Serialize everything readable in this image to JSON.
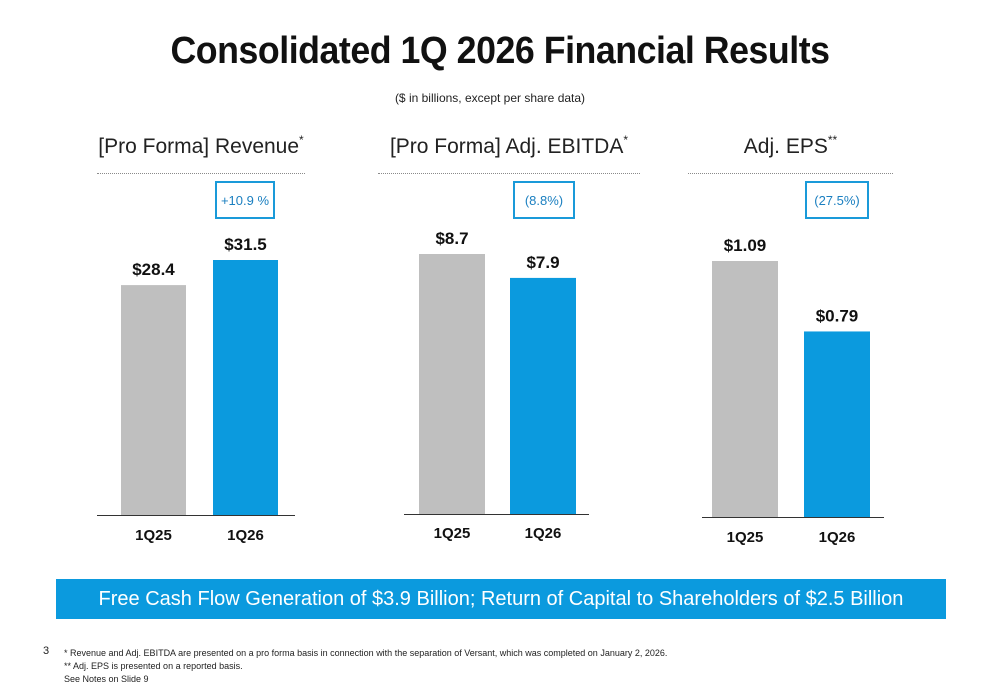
{
  "title": "Consolidated 1Q 2026 Financial Results",
  "subtitle": "($ in billions, except per share data)",
  "colors": {
    "prior": "#bfbfbf",
    "current": "#0b9ade",
    "accent": "#1a9ad9",
    "banner": "#0b9ade"
  },
  "chart_data": [
    {
      "type": "bar",
      "title": "[Pro Forma] Revenue",
      "title_mark": "*",
      "categories": [
        "1Q25",
        "1Q26"
      ],
      "values": [
        28.4,
        31.5
      ],
      "value_labels": [
        "$28.4",
        "$31.5"
      ],
      "change_label": "+10.9 %",
      "ylim": [
        0,
        31.5
      ]
    },
    {
      "type": "bar",
      "title": "[Pro Forma] Adj. EBITDA",
      "title_mark": "*",
      "categories": [
        "1Q25",
        "1Q26"
      ],
      "values": [
        8.7,
        7.9
      ],
      "value_labels": [
        "$8.7",
        "$7.9"
      ],
      "change_label": "(8.8%)",
      "ylim": [
        0,
        8.7
      ]
    },
    {
      "type": "bar",
      "title": "Adj. EPS",
      "title_mark": "**",
      "categories": [
        "1Q25",
        "1Q26"
      ],
      "values": [
        1.09,
        0.79
      ],
      "value_labels": [
        "$1.09",
        "$0.79"
      ],
      "change_label": "(27.5%)",
      "ylim": [
        0,
        1.09
      ]
    }
  ],
  "banner": "Free Cash Flow Generation of $3.9 Billion; Return of Capital to Shareholders of $2.5 Billion",
  "slide_number": "3",
  "footnotes": [
    "* Revenue and Adj. EBITDA are presented on a pro forma basis in connection with the separation of Versant, which was completed on January 2, 2026.",
    "** Adj. EPS is presented on a reported basis.",
    "See Notes on Slide 9"
  ]
}
